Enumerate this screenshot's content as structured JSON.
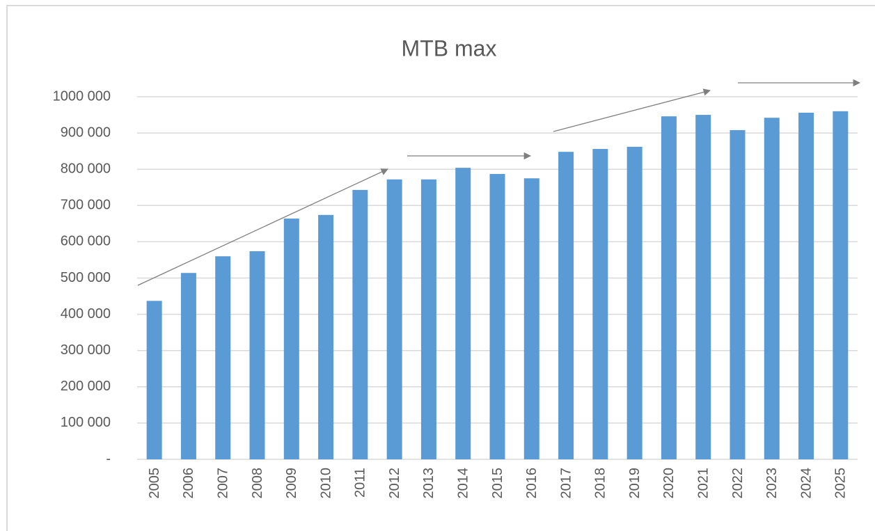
{
  "chart_data": {
    "type": "bar",
    "title": "MTB max",
    "categories": [
      "2005",
      "2006",
      "2007",
      "2008",
      "2009",
      "2010",
      "2011",
      "2012",
      "2013",
      "2014",
      "2015",
      "2016",
      "2017",
      "2018",
      "2019",
      "2020",
      "2021",
      "2022",
      "2023",
      "2024",
      "2025"
    ],
    "values": [
      437000,
      514000,
      560000,
      574000,
      664000,
      674000,
      743000,
      772000,
      772000,
      804000,
      787000,
      775000,
      848000,
      856000,
      862000,
      946000,
      950000,
      908000,
      942000,
      956000,
      960000
    ],
    "color": "#5b9bd5",
    "ylim": [
      0,
      1000000
    ],
    "yticks": [
      {
        "value": 0,
        "label": "-"
      },
      {
        "value": 100000,
        "label": "100 000"
      },
      {
        "value": 200000,
        "label": "200 000"
      },
      {
        "value": 300000,
        "label": "300 000"
      },
      {
        "value": 400000,
        "label": "400 000"
      },
      {
        "value": 500000,
        "label": "500 000"
      },
      {
        "value": 600000,
        "label": "600 000"
      },
      {
        "value": 700000,
        "label": "700 000"
      },
      {
        "value": 800000,
        "label": "800 000"
      },
      {
        "value": 900000,
        "label": "900 000"
      },
      {
        "value": 1000000,
        "label": "1000 000"
      }
    ],
    "grid": true
  }
}
